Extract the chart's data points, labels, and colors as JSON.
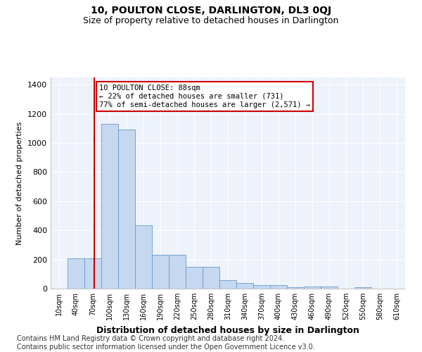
{
  "title": "10, POULTON CLOSE, DARLINGTON, DL3 0QJ",
  "subtitle": "Size of property relative to detached houses in Darlington",
  "xlabel": "Distribution of detached houses by size in Darlington",
  "ylabel": "Number of detached properties",
  "bar_color": "#c5d8f0",
  "bar_edge_color": "#6699cc",
  "background_color": "#eef2fb",
  "grid_color": "#ffffff",
  "annotation_box_color": "#cc0000",
  "annotation_text": "10 POULTON CLOSE: 88sqm\n← 22% of detached houses are smaller (731)\n77% of semi-detached houses are larger (2,571) →",
  "vline_x": 88,
  "vline_color": "#cc0000",
  "categories": [
    "10sqm",
    "40sqm",
    "70sqm",
    "100sqm",
    "130sqm",
    "160sqm",
    "190sqm",
    "220sqm",
    "250sqm",
    "280sqm",
    "310sqm",
    "340sqm",
    "370sqm",
    "400sqm",
    "430sqm",
    "460sqm",
    "490sqm",
    "520sqm",
    "550sqm",
    "580sqm",
    "610sqm"
  ],
  "bin_edges": [
    10,
    40,
    70,
    100,
    130,
    160,
    190,
    220,
    250,
    280,
    310,
    340,
    370,
    400,
    430,
    460,
    490,
    520,
    550,
    580,
    610
  ],
  "bin_width": 30,
  "values": [
    0,
    207,
    210,
    1130,
    1090,
    435,
    232,
    232,
    148,
    148,
    57,
    40,
    25,
    25,
    12,
    15,
    15,
    0,
    12,
    0,
    0
  ],
  "ylim": [
    0,
    1450
  ],
  "yticks": [
    0,
    200,
    400,
    600,
    800,
    1000,
    1200,
    1400
  ],
  "footnote": "Contains HM Land Registry data © Crown copyright and database right 2024.\nContains public sector information licensed under the Open Government Licence v3.0.",
  "footnote_fontsize": 7.0,
  "title_fontsize": 10,
  "subtitle_fontsize": 9,
  "ylabel_fontsize": 8,
  "xlabel_fontsize": 9
}
